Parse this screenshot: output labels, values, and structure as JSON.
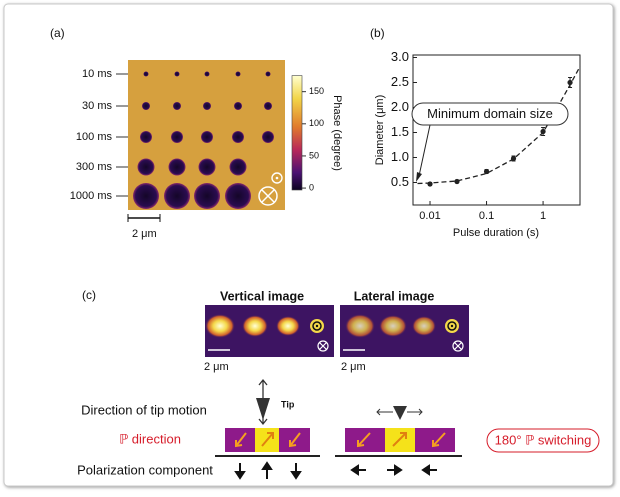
{
  "panel_a": {
    "label": "(a)",
    "rows": [
      "10 ms",
      "30 ms",
      "100 ms",
      "300 ms",
      "1000 ms"
    ],
    "scale_bar": "2 μm",
    "colorbar": {
      "label": "Phase (degree)",
      "lim": [
        -3,
        175
      ],
      "ticks": [
        0,
        50,
        100,
        150
      ]
    }
  },
  "chart_data": {
    "type": "scatter",
    "label": "(b)",
    "xlabel": "Pulse duration (s)",
    "ylabel": "Diameter (μm)",
    "xscale": "log",
    "xlim": [
      0.005,
      4.5
    ],
    "xticks": [
      0.01,
      0.1,
      1
    ],
    "ylim": [
      0.05,
      3.05
    ],
    "yticks": [
      0.5,
      {
        "value": 1,
        "label": "1.0"
      },
      1.5,
      {
        "value": 2,
        "label": "2.0"
      },
      2.5,
      {
        "value": 3,
        "label": "3.0"
      }
    ],
    "annotation": "Minimum domain size",
    "series": [
      {
        "color": "#222222",
        "x": [
          0.01,
          0.03,
          0.1,
          0.3,
          1,
          3
        ],
        "values": [
          0.47,
          0.52,
          0.72,
          0.98,
          1.52,
          2.5
        ],
        "errors": [
          0.03,
          0.03,
          0.04,
          0.05,
          0.08,
          0.1
        ]
      },
      {
        "type": "line",
        "dashed": true,
        "color": "#222222",
        "x": [
          0.006,
          0.01,
          0.03,
          0.1,
          0.3,
          1,
          3,
          4.5
        ],
        "values": [
          0.48,
          0.49,
          0.53,
          0.68,
          0.97,
          1.5,
          2.45,
          2.82
        ]
      }
    ]
  },
  "panel_c": {
    "label": "(c)",
    "images": [
      {
        "title": "Vertical image",
        "scale_bar": "2 μm"
      },
      {
        "title": "Lateral image",
        "scale_bar": "2 μm"
      }
    ],
    "diagram": {
      "rows": [
        "Direction of tip motion",
        "ℙ direction",
        "Polarization component"
      ],
      "tip": "Tip",
      "switching": "180° ℙ switching"
    }
  }
}
